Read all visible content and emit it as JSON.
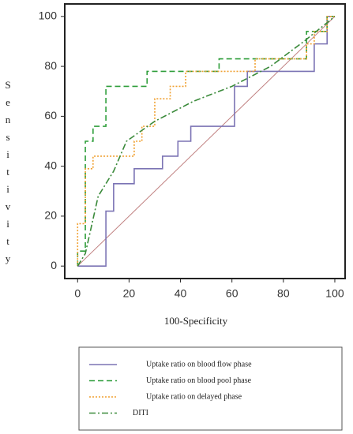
{
  "chart_data": {
    "type": "line",
    "x_label": "100-Specificity",
    "y_label": "Sensitivity",
    "xlim": [
      -5,
      104
    ],
    "ylim": [
      -5,
      105
    ],
    "xticks": [
      0,
      20,
      40,
      60,
      80,
      100
    ],
    "yticks": [
      0,
      20,
      40,
      60,
      80,
      100
    ],
    "reference_color": "#c08080",
    "series": [
      {
        "name": "Uptake ratio on blood flow phase",
        "color": "#7b73b4",
        "dash": "none",
        "x": [
          0,
          11,
          11,
          14,
          14,
          22,
          22,
          33,
          33,
          39,
          39,
          44,
          44,
          61,
          61,
          66,
          66,
          92,
          92,
          97,
          97,
          100
        ],
        "values": [
          0,
          0,
          22,
          22,
          33,
          33,
          39,
          39,
          44,
          44,
          50,
          50,
          56,
          56,
          72,
          72,
          78,
          78,
          89,
          89,
          100,
          100
        ]
      },
      {
        "name": "Uptake ratio on blood pool phase",
        "color": "#2e9e3a",
        "dash": "7,4",
        "x": [
          0,
          0,
          3,
          3,
          6,
          6,
          11,
          11,
          27,
          27,
          55,
          55,
          89,
          89,
          97,
          97,
          100
        ],
        "values": [
          0,
          6,
          6,
          50,
          50,
          56,
          56,
          72,
          72,
          78,
          78,
          83,
          83,
          94,
          94,
          100,
          100
        ]
      },
      {
        "name": "Uptake ratio on delayed phase",
        "color": "#f0a030",
        "dash": "2,2",
        "x": [
          0,
          0,
          3,
          3,
          6,
          6,
          22,
          22,
          25,
          25,
          30,
          30,
          36,
          36,
          42,
          42,
          69,
          69,
          89,
          89,
          92,
          92,
          97,
          97,
          100
        ],
        "values": [
          0,
          17,
          17,
          39,
          39,
          44,
          44,
          50,
          50,
          56,
          56,
          67,
          67,
          72,
          72,
          78,
          78,
          83,
          83,
          89,
          89,
          94,
          94,
          100,
          100
        ]
      },
      {
        "name": "DITI",
        "color": "#3a8a3a",
        "dash": "8,3,2,3",
        "x": [
          0,
          3,
          8,
          14,
          19,
          30,
          45,
          60,
          75,
          88,
          100
        ],
        "values": [
          0,
          5,
          28,
          38,
          50,
          58,
          66,
          72,
          80,
          90,
          100
        ]
      }
    ]
  }
}
